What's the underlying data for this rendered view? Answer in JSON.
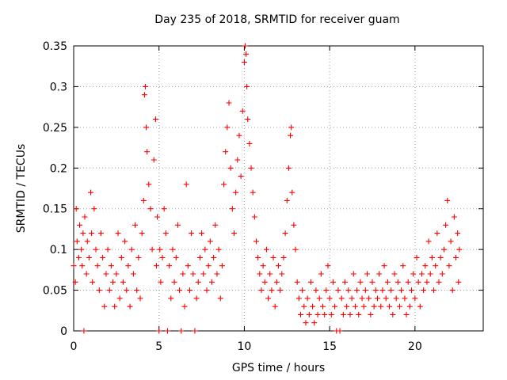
{
  "chart_data": {
    "type": "scatter",
    "title": "Day 235 of 2018, SRMTID for receiver guam",
    "xlabel": "GPS time / hours",
    "ylabel": "SRMTID / TECUs",
    "xlim": [
      0,
      24
    ],
    "ylim": [
      0,
      0.35
    ],
    "xticks": [
      0,
      5,
      10,
      15,
      20
    ],
    "xtick_labels": [
      "0",
      "5",
      "10",
      "15",
      "20"
    ],
    "yticks": [
      0,
      0.05,
      0.1,
      0.15,
      0.2,
      0.25,
      0.3,
      0.35
    ],
    "ytick_labels": [
      "0",
      "0.05",
      "0.1",
      "0.15",
      "0.2",
      "0.25",
      "0.3",
      "0.35"
    ],
    "grid": true,
    "marker": "+",
    "color": "#ff0000",
    "series": [
      {
        "name": "SRMTID",
        "points": [
          [
            0.0,
            0.08
          ],
          [
            0.1,
            0.06
          ],
          [
            0.15,
            0.15
          ],
          [
            0.2,
            0.11
          ],
          [
            0.3,
            0.09
          ],
          [
            0.35,
            0.13
          ],
          [
            0.45,
            0.1
          ],
          [
            0.5,
            0.08
          ],
          [
            0.55,
            0.12
          ],
          [
            0.6,
            0.0
          ],
          [
            0.65,
            0.14
          ],
          [
            0.75,
            0.07
          ],
          [
            0.8,
            0.11
          ],
          [
            0.9,
            0.09
          ],
          [
            1.0,
            0.17
          ],
          [
            1.05,
            0.12
          ],
          [
            1.1,
            0.06
          ],
          [
            1.2,
            0.15
          ],
          [
            1.3,
            0.1
          ],
          [
            1.4,
            0.08
          ],
          [
            1.5,
            0.05
          ],
          [
            1.6,
            0.12
          ],
          [
            1.7,
            0.09
          ],
          [
            1.8,
            0.03
          ],
          [
            1.9,
            0.07
          ],
          [
            2.0,
            0.1
          ],
          [
            2.1,
            0.05
          ],
          [
            2.2,
            0.08
          ],
          [
            2.3,
            0.06
          ],
          [
            2.4,
            0.03
          ],
          [
            2.5,
            0.07
          ],
          [
            2.6,
            0.12
          ],
          [
            2.7,
            0.04
          ],
          [
            2.8,
            0.09
          ],
          [
            2.9,
            0.06
          ],
          [
            3.0,
            0.11
          ],
          [
            3.1,
            0.05
          ],
          [
            3.2,
            0.08
          ],
          [
            3.3,
            0.03
          ],
          [
            3.4,
            0.1
          ],
          [
            3.5,
            0.07
          ],
          [
            3.6,
            0.13
          ],
          [
            3.7,
            0.05
          ],
          [
            3.8,
            0.09
          ],
          [
            3.9,
            0.04
          ],
          [
            4.0,
            0.12
          ],
          [
            4.1,
            0.16
          ],
          [
            4.15,
            0.29
          ],
          [
            4.2,
            0.3
          ],
          [
            4.25,
            0.25
          ],
          [
            4.3,
            0.22
          ],
          [
            4.4,
            0.18
          ],
          [
            4.5,
            0.15
          ],
          [
            4.6,
            0.1
          ],
          [
            4.7,
            0.21
          ],
          [
            4.8,
            0.26
          ],
          [
            4.85,
            0.08
          ],
          [
            4.9,
            0.14
          ],
          [
            5.0,
            0.0
          ],
          [
            5.05,
            0.1
          ],
          [
            5.1,
            0.06
          ],
          [
            5.2,
            0.09
          ],
          [
            5.3,
            0.15
          ],
          [
            5.4,
            0.12
          ],
          [
            5.5,
            0.0
          ],
          [
            5.6,
            0.08
          ],
          [
            5.7,
            0.04
          ],
          [
            5.8,
            0.1
          ],
          [
            5.9,
            0.06
          ],
          [
            6.0,
            0.09
          ],
          [
            6.1,
            0.13
          ],
          [
            6.2,
            0.05
          ],
          [
            6.3,
            0.0
          ],
          [
            6.4,
            0.07
          ],
          [
            6.5,
            0.03
          ],
          [
            6.6,
            0.18
          ],
          [
            6.7,
            0.08
          ],
          [
            6.8,
            0.05
          ],
          [
            6.9,
            0.12
          ],
          [
            7.0,
            0.07
          ],
          [
            7.1,
            0.0
          ],
          [
            7.2,
            0.04
          ],
          [
            7.3,
            0.06
          ],
          [
            7.4,
            0.09
          ],
          [
            7.5,
            0.12
          ],
          [
            7.6,
            0.07
          ],
          [
            7.7,
            0.1
          ],
          [
            7.8,
            0.05
          ],
          [
            7.9,
            0.08
          ],
          [
            8.0,
            0.11
          ],
          [
            8.1,
            0.06
          ],
          [
            8.2,
            0.09
          ],
          [
            8.3,
            0.13
          ],
          [
            8.4,
            0.07
          ],
          [
            8.5,
            0.1
          ],
          [
            8.6,
            0.04
          ],
          [
            8.7,
            0.08
          ],
          [
            8.8,
            0.18
          ],
          [
            8.9,
            0.22
          ],
          [
            9.0,
            0.25
          ],
          [
            9.1,
            0.28
          ],
          [
            9.2,
            0.2
          ],
          [
            9.3,
            0.15
          ],
          [
            9.4,
            0.12
          ],
          [
            9.5,
            0.17
          ],
          [
            9.6,
            0.21
          ],
          [
            9.7,
            0.24
          ],
          [
            9.8,
            0.19
          ],
          [
            9.9,
            0.27
          ],
          [
            10.0,
            0.33
          ],
          [
            10.05,
            0.35
          ],
          [
            10.1,
            0.34
          ],
          [
            10.15,
            0.3
          ],
          [
            10.2,
            0.26
          ],
          [
            10.3,
            0.23
          ],
          [
            10.4,
            0.2
          ],
          [
            10.5,
            0.17
          ],
          [
            10.6,
            0.14
          ],
          [
            10.7,
            0.11
          ],
          [
            10.8,
            0.09
          ],
          [
            10.9,
            0.07
          ],
          [
            11.0,
            0.05
          ],
          [
            11.1,
            0.08
          ],
          [
            11.2,
            0.06
          ],
          [
            11.3,
            0.1
          ],
          [
            11.4,
            0.04
          ],
          [
            11.5,
            0.07
          ],
          [
            11.6,
            0.05
          ],
          [
            11.7,
            0.09
          ],
          [
            11.8,
            0.03
          ],
          [
            11.9,
            0.06
          ],
          [
            12.0,
            0.08
          ],
          [
            12.1,
            0.05
          ],
          [
            12.2,
            0.07
          ],
          [
            12.3,
            0.09
          ],
          [
            12.4,
            0.12
          ],
          [
            12.5,
            0.16
          ],
          [
            12.6,
            0.2
          ],
          [
            12.7,
            0.24
          ],
          [
            12.75,
            0.25
          ],
          [
            12.8,
            0.17
          ],
          [
            12.9,
            0.13
          ],
          [
            13.0,
            0.1
          ],
          [
            13.1,
            0.06
          ],
          [
            13.2,
            0.04
          ],
          [
            13.3,
            0.02
          ],
          [
            13.4,
            0.05
          ],
          [
            13.5,
            0.03
          ],
          [
            13.6,
            0.01
          ],
          [
            13.7,
            0.04
          ],
          [
            13.8,
            0.02
          ],
          [
            13.9,
            0.06
          ],
          [
            14.0,
            0.03
          ],
          [
            14.1,
            0.01
          ],
          [
            14.2,
            0.05
          ],
          [
            14.3,
            0.02
          ],
          [
            14.4,
            0.04
          ],
          [
            14.5,
            0.07
          ],
          [
            14.6,
            0.03
          ],
          [
            14.7,
            0.02
          ],
          [
            14.8,
            0.05
          ],
          [
            14.9,
            0.08
          ],
          [
            15.0,
            0.04
          ],
          [
            15.1,
            0.02
          ],
          [
            15.2,
            0.06
          ],
          [
            15.3,
            0.03
          ],
          [
            15.4,
            0.0
          ],
          [
            15.5,
            0.05
          ],
          [
            15.6,
            0.0
          ],
          [
            15.7,
            0.04
          ],
          [
            15.8,
            0.02
          ],
          [
            15.9,
            0.06
          ],
          [
            16.0,
            0.03
          ],
          [
            16.1,
            0.05
          ],
          [
            16.2,
            0.02
          ],
          [
            16.3,
            0.04
          ],
          [
            16.4,
            0.07
          ],
          [
            16.5,
            0.03
          ],
          [
            16.6,
            0.05
          ],
          [
            16.7,
            0.02
          ],
          [
            16.8,
            0.06
          ],
          [
            16.9,
            0.04
          ],
          [
            17.0,
            0.03
          ],
          [
            17.1,
            0.05
          ],
          [
            17.2,
            0.07
          ],
          [
            17.3,
            0.04
          ],
          [
            17.4,
            0.02
          ],
          [
            17.5,
            0.06
          ],
          [
            17.6,
            0.03
          ],
          [
            17.7,
            0.05
          ],
          [
            17.8,
            0.04
          ],
          [
            17.9,
            0.07
          ],
          [
            18.0,
            0.03
          ],
          [
            18.1,
            0.05
          ],
          [
            18.2,
            0.08
          ],
          [
            18.3,
            0.04
          ],
          [
            18.4,
            0.06
          ],
          [
            18.5,
            0.03
          ],
          [
            18.6,
            0.05
          ],
          [
            18.7,
            0.02
          ],
          [
            18.8,
            0.07
          ],
          [
            18.9,
            0.04
          ],
          [
            19.0,
            0.06
          ],
          [
            19.1,
            0.03
          ],
          [
            19.2,
            0.05
          ],
          [
            19.3,
            0.08
          ],
          [
            19.4,
            0.04
          ],
          [
            19.5,
            0.02
          ],
          [
            19.6,
            0.06
          ],
          [
            19.7,
            0.03
          ],
          [
            19.8,
            0.05
          ],
          [
            19.9,
            0.07
          ],
          [
            20.0,
            0.04
          ],
          [
            20.1,
            0.09
          ],
          [
            20.2,
            0.06
          ],
          [
            20.3,
            0.03
          ],
          [
            20.4,
            0.07
          ],
          [
            20.5,
            0.05
          ],
          [
            20.6,
            0.08
          ],
          [
            20.7,
            0.06
          ],
          [
            20.8,
            0.11
          ],
          [
            20.9,
            0.07
          ],
          [
            21.0,
            0.09
          ],
          [
            21.1,
            0.05
          ],
          [
            21.2,
            0.08
          ],
          [
            21.3,
            0.12
          ],
          [
            21.4,
            0.06
          ],
          [
            21.5,
            0.09
          ],
          [
            21.6,
            0.07
          ],
          [
            21.7,
            0.1
          ],
          [
            21.8,
            0.13
          ],
          [
            21.9,
            0.16
          ],
          [
            22.0,
            0.08
          ],
          [
            22.1,
            0.11
          ],
          [
            22.2,
            0.05
          ],
          [
            22.3,
            0.14
          ],
          [
            22.4,
            0.09
          ],
          [
            22.5,
            0.12
          ],
          [
            22.55,
            0.06
          ],
          [
            22.6,
            0.1
          ]
        ]
      }
    ]
  }
}
